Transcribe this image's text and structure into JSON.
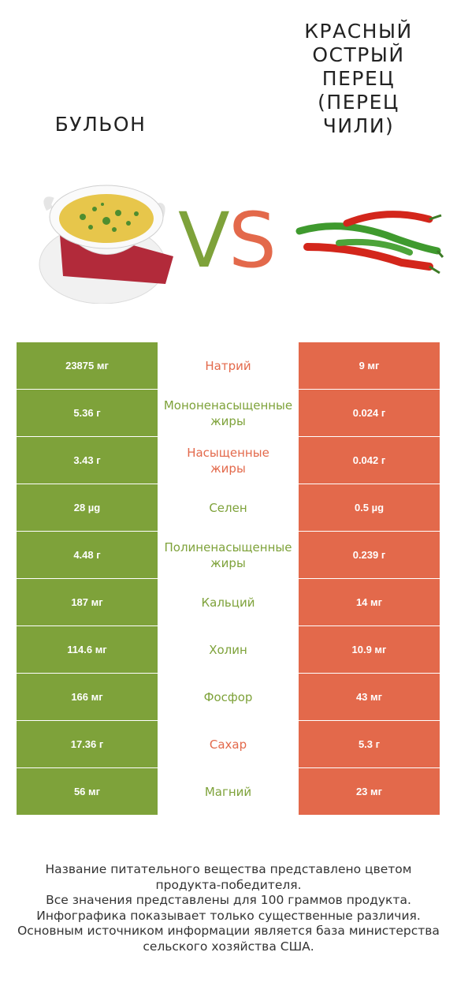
{
  "header": {
    "left_title": "БУЛЬОН",
    "right_title": "КРАСНЫЙ\nОСТРЫЙ\nПЕРЕЦ\n(ПЕРЕЦ\nЧИЛИ)",
    "vs_v": "V",
    "vs_s": "S"
  },
  "colors": {
    "left_brand": "#7ea23a",
    "right_brand": "#e3694b"
  },
  "rows": [
    {
      "left": "23875 мг",
      "name_lines": [
        "Натрий"
      ],
      "right": "9 мг",
      "winner": "right"
    },
    {
      "left": "5.36 г",
      "name_lines": [
        "Мононенасыщенные",
        "жиры"
      ],
      "right": "0.024 г",
      "winner": "left"
    },
    {
      "left": "3.43 г",
      "name_lines": [
        "Насыщенные",
        "жиры"
      ],
      "right": "0.042 г",
      "winner": "right"
    },
    {
      "left": "28 µg",
      "name_lines": [
        "Селен"
      ],
      "right": "0.5 µg",
      "winner": "left"
    },
    {
      "left": "4.48 г",
      "name_lines": [
        "Полиненасыщенные",
        "жиры"
      ],
      "right": "0.239 г",
      "winner": "left"
    },
    {
      "left": "187 мг",
      "name_lines": [
        "Кальций"
      ],
      "right": "14 мг",
      "winner": "left"
    },
    {
      "left": "114.6 мг",
      "name_lines": [
        "Холин"
      ],
      "right": "10.9 мг",
      "winner": "left"
    },
    {
      "left": "166 мг",
      "name_lines": [
        "Фосфор"
      ],
      "right": "43 мг",
      "winner": "left"
    },
    {
      "left": "17.36 г",
      "name_lines": [
        "Сахар"
      ],
      "right": "5.3 г",
      "winner": "right"
    },
    {
      "left": "56 мг",
      "name_lines": [
        "Магний"
      ],
      "right": "23 мг",
      "winner": "left"
    }
  ],
  "footer": [
    "Название питательного вещества представлено цветом",
    "продукта-победителя.",
    "Все значения представлены для 100 граммов продукта.",
    "Инфографика показывает только существенные различия.",
    "Основным источником информации является база министерства",
    "сельского хозяйства США."
  ]
}
